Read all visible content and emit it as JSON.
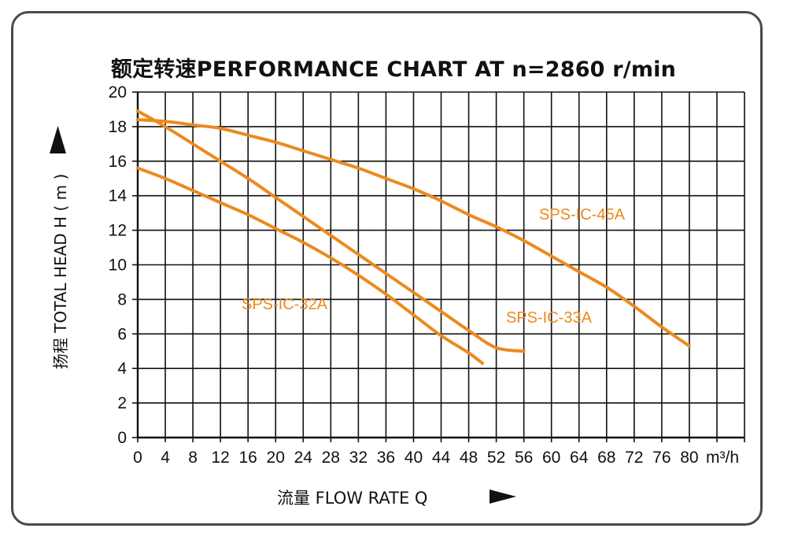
{
  "chart_data": {
    "type": "line",
    "title": "额定转速PERFORMANCE CHART AT  n=2860 r/min",
    "xlabel": "流量 FLOW RATE  Q",
    "ylabel": "扬程 TOTAL HEAD  H ( m )",
    "x_unit": "m³/h",
    "xlim": [
      0,
      88
    ],
    "ylim": [
      0,
      20
    ],
    "x_ticks": [
      0,
      4,
      8,
      12,
      16,
      20,
      24,
      28,
      32,
      36,
      40,
      44,
      48,
      52,
      56,
      60,
      64,
      68,
      72,
      76,
      80
    ],
    "x_tick_labels": [
      "0",
      "4",
      "8",
      "12",
      "16",
      "20",
      "24",
      "28",
      "32",
      "36",
      "40",
      "44",
      "48",
      "52",
      "56",
      "60",
      "64",
      "68",
      "72",
      "76",
      "80"
    ],
    "y_ticks": [
      0,
      2,
      4,
      6,
      8,
      10,
      12,
      14,
      16,
      18,
      20
    ],
    "y_tick_labels": [
      "0",
      "2",
      "4",
      "6",
      "8",
      "10",
      "12",
      "14",
      "16",
      "18",
      "20"
    ],
    "grid": true,
    "line_color": "#ec8a1f",
    "series": [
      {
        "name": "SPS-IC-32A",
        "x": [
          0,
          4,
          8,
          12,
          16,
          20,
          24,
          28,
          32,
          36,
          40,
          44,
          48,
          50
        ],
        "y": [
          15.6,
          15.0,
          14.3,
          13.6,
          12.9,
          12.1,
          11.3,
          10.4,
          9.4,
          8.3,
          7.1,
          5.9,
          4.9,
          4.3
        ]
      },
      {
        "name": "SPS-IC-33A",
        "x": [
          0,
          4,
          8,
          12,
          16,
          20,
          24,
          28,
          32,
          36,
          40,
          44,
          48,
          52,
          56
        ],
        "y": [
          18.9,
          18.0,
          17.0,
          16.0,
          15.0,
          13.9,
          12.8,
          11.7,
          10.6,
          9.5,
          8.4,
          7.3,
          6.2,
          5.2,
          5.0
        ]
      },
      {
        "name": "SPS-IC-45A",
        "x": [
          0,
          4,
          8,
          12,
          16,
          20,
          24,
          28,
          32,
          36,
          40,
          44,
          48,
          52,
          56,
          60,
          64,
          68,
          72,
          76,
          80
        ],
        "y": [
          18.4,
          18.3,
          18.1,
          17.9,
          17.5,
          17.1,
          16.6,
          16.1,
          15.6,
          15.0,
          14.4,
          13.7,
          12.9,
          12.2,
          11.4,
          10.5,
          9.6,
          8.7,
          7.6,
          6.4,
          5.3
        ]
      }
    ],
    "legend": "inline labels"
  }
}
